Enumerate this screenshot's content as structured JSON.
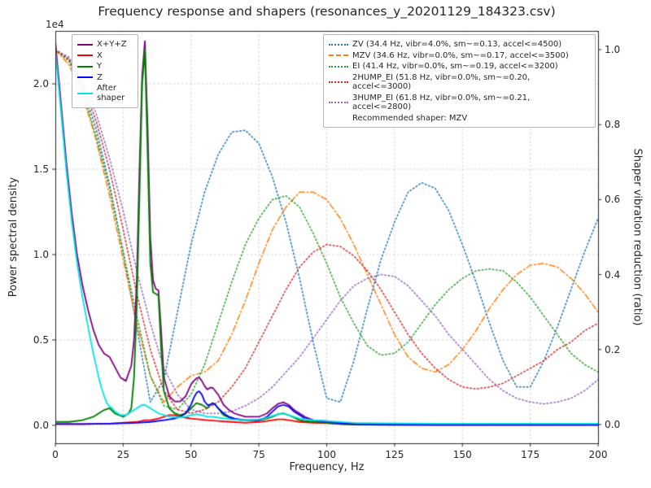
{
  "chart_data": {
    "type": "line",
    "title": "Frequency response and shapers (resonances_y_20201129_184323.csv)",
    "xlabel": "Frequency, Hz",
    "ylabel_left": "Power spectral density",
    "ylabel_right": "Shaper vibration reduction (ratio)",
    "y_left_offset_text": "1e4",
    "grid": true,
    "x_range": [
      0,
      200
    ],
    "y_left_range_1e4": [
      -0.105,
      2.31
    ],
    "y_right_range": [
      -0.05,
      1.05
    ],
    "x_ticks": [
      0,
      25,
      50,
      75,
      100,
      125,
      150,
      175,
      200
    ],
    "y_left_ticks": {
      "values": [
        0,
        0.5,
        1,
        1.5,
        2
      ],
      "labels": [
        "0.0",
        "0.5",
        "1.0",
        "1.5",
        "2.0"
      ]
    },
    "y_right_ticks": {
      "values": [
        0,
        0.2,
        0.4,
        0.6,
        0.8,
        1
      ],
      "labels": [
        "0.0",
        "0.2",
        "0.4",
        "0.6",
        "0.8",
        "1.0"
      ]
    },
    "psd_units": "1e4",
    "psd_series": [
      {
        "name": "X+Y+Z",
        "color": "#800080",
        "style": "solid",
        "width": 1.8,
        "x": [
          0,
          2,
          4,
          6,
          8,
          10,
          12,
          14,
          16,
          18,
          20,
          22,
          24,
          26,
          28,
          29,
          30,
          31,
          32,
          33,
          34,
          35,
          36,
          37,
          38,
          39,
          40,
          42,
          44,
          46,
          48,
          50,
          51,
          52,
          53,
          54,
          55,
          56,
          57,
          58,
          59,
          60,
          62,
          64,
          66,
          68,
          70,
          72,
          75,
          78,
          80,
          82,
          84,
          86,
          88,
          90,
          92,
          95,
          100,
          105,
          110,
          120,
          140,
          160,
          180,
          200
        ],
        "y": [
          2.25,
          1.9,
          1.55,
          1.25,
          1.0,
          0.82,
          0.68,
          0.56,
          0.47,
          0.42,
          0.4,
          0.34,
          0.28,
          0.26,
          0.35,
          0.5,
          0.85,
          1.5,
          2.05,
          2.25,
          1.75,
          1.1,
          0.85,
          0.8,
          0.79,
          0.55,
          0.28,
          0.17,
          0.14,
          0.14,
          0.17,
          0.24,
          0.26,
          0.275,
          0.28,
          0.26,
          0.23,
          0.21,
          0.22,
          0.22,
          0.2,
          0.18,
          0.12,
          0.09,
          0.07,
          0.06,
          0.05,
          0.05,
          0.05,
          0.07,
          0.1,
          0.125,
          0.135,
          0.12,
          0.09,
          0.07,
          0.05,
          0.03,
          0.025,
          0.015,
          0.01,
          0.005,
          0.004,
          0.004,
          0.004,
          0.004
        ]
      },
      {
        "name": "X",
        "color": "#ff0000",
        "style": "solid",
        "width": 1.8,
        "x": [
          0,
          10,
          20,
          30,
          33,
          35,
          38,
          40,
          42,
          44,
          46,
          48,
          50,
          53,
          56,
          60,
          65,
          70,
          75,
          78,
          80,
          82,
          84,
          86,
          88,
          90,
          95,
          100,
          105,
          110,
          120,
          140,
          160,
          180,
          200
        ],
        "y": [
          0.008,
          0.008,
          0.01,
          0.02,
          0.03,
          0.03,
          0.04,
          0.05,
          0.06,
          0.06,
          0.05,
          0.045,
          0.04,
          0.035,
          0.03,
          0.025,
          0.02,
          0.015,
          0.02,
          0.025,
          0.03,
          0.035,
          0.035,
          0.03,
          0.025,
          0.02,
          0.015,
          0.012,
          0.008,
          0.005,
          0.004,
          0.003,
          0.003,
          0.003,
          0.003
        ]
      },
      {
        "name": "Y",
        "color": "#008000",
        "style": "solid",
        "width": 1.9,
        "x": [
          0,
          5,
          10,
          14,
          16,
          18,
          20,
          22,
          25,
          27,
          28,
          29,
          30,
          31,
          32,
          33,
          34,
          35,
          36,
          37,
          38,
          39,
          40,
          42,
          44,
          46,
          48,
          50,
          52,
          54,
          56,
          57,
          58,
          59,
          60,
          62,
          65,
          68,
          70,
          72,
          75,
          78,
          80,
          82,
          84,
          86,
          88,
          90,
          92,
          95,
          100,
          105,
          110,
          120,
          140,
          160,
          180,
          200
        ],
        "y": [
          0.02,
          0.02,
          0.03,
          0.05,
          0.07,
          0.09,
          0.1,
          0.07,
          0.05,
          0.07,
          0.1,
          0.28,
          0.7,
          1.35,
          2.0,
          2.2,
          1.6,
          0.95,
          0.78,
          0.77,
          0.76,
          0.45,
          0.2,
          0.1,
          0.07,
          0.06,
          0.07,
          0.1,
          0.13,
          0.12,
          0.1,
          0.12,
          0.13,
          0.12,
          0.1,
          0.06,
          0.04,
          0.03,
          0.03,
          0.03,
          0.03,
          0.04,
          0.05,
          0.065,
          0.07,
          0.06,
          0.045,
          0.03,
          0.025,
          0.02,
          0.015,
          0.008,
          0.005,
          0.003,
          0.003,
          0.003,
          0.003,
          0.003
        ]
      },
      {
        "name": "Z",
        "color": "#0000ff",
        "style": "solid",
        "width": 1.8,
        "x": [
          0,
          10,
          20,
          30,
          35,
          40,
          44,
          46,
          48,
          50,
          51,
          52,
          53,
          54,
          55,
          56,
          57,
          58,
          59,
          60,
          62,
          64,
          66,
          68,
          70,
          72,
          75,
          78,
          80,
          82,
          84,
          86,
          88,
          90,
          92,
          95,
          100,
          105,
          110,
          120,
          140,
          160,
          180,
          200
        ],
        "y": [
          0.008,
          0.008,
          0.01,
          0.015,
          0.02,
          0.03,
          0.04,
          0.05,
          0.07,
          0.12,
          0.16,
          0.19,
          0.2,
          0.18,
          0.14,
          0.12,
          0.12,
          0.13,
          0.12,
          0.1,
          0.07,
          0.05,
          0.04,
          0.035,
          0.03,
          0.03,
          0.03,
          0.05,
          0.08,
          0.11,
          0.12,
          0.11,
          0.08,
          0.06,
          0.04,
          0.03,
          0.02,
          0.012,
          0.006,
          0.004,
          0.003,
          0.003,
          0.003,
          0.003
        ]
      },
      {
        "name": "After shaper",
        "color": "#00e5e5",
        "style": "solid",
        "width": 1.8,
        "x": [
          0,
          2,
          4,
          6,
          8,
          10,
          12,
          14,
          16,
          17,
          18,
          19,
          20,
          21,
          22,
          24,
          26,
          28,
          30,
          31,
          32,
          33,
          34,
          36,
          38,
          40,
          42,
          45,
          48,
          50,
          52,
          54,
          56,
          58,
          60,
          65,
          70,
          75,
          78,
          80,
          82,
          84,
          86,
          90,
          95,
          100,
          110,
          120,
          140,
          160,
          180,
          200
        ],
        "y": [
          2.2,
          1.85,
          1.5,
          1.2,
          0.95,
          0.75,
          0.58,
          0.42,
          0.28,
          0.22,
          0.17,
          0.13,
          0.11,
          0.1,
          0.08,
          0.06,
          0.06,
          0.08,
          0.1,
          0.11,
          0.12,
          0.12,
          0.11,
          0.09,
          0.07,
          0.06,
          0.05,
          0.045,
          0.05,
          0.06,
          0.065,
          0.06,
          0.05,
          0.05,
          0.045,
          0.035,
          0.03,
          0.035,
          0.045,
          0.055,
          0.065,
          0.07,
          0.06,
          0.04,
          0.03,
          0.025,
          0.015,
          0.012,
          0.01,
          0.01,
          0.01,
          0.01
        ]
      }
    ],
    "shaper_x": [
      0,
      5,
      10,
      15,
      20,
      25,
      30,
      35,
      40,
      45,
      50,
      55,
      60,
      65,
      70,
      75,
      80,
      85,
      90,
      95,
      100,
      105,
      110,
      115,
      120,
      125,
      130,
      135,
      140,
      145,
      150,
      155,
      160,
      165,
      170,
      175,
      180,
      185,
      190,
      195,
      200
    ],
    "shaper_series": [
      {
        "name": "ZV",
        "label": "ZV (34.4 Hz, vibr=4.0%, sm~=0.13, accel<=4500)",
        "color": "#1f77b4",
        "style": "dotted",
        "y": [
          1.0,
          0.97,
          0.9,
          0.79,
          0.64,
          0.46,
          0.26,
          0.06,
          0.12,
          0.3,
          0.48,
          0.62,
          0.72,
          0.78,
          0.785,
          0.75,
          0.66,
          0.54,
          0.39,
          0.22,
          0.07,
          0.06,
          0.17,
          0.31,
          0.44,
          0.54,
          0.62,
          0.645,
          0.63,
          0.57,
          0.48,
          0.38,
          0.27,
          0.17,
          0.1,
          0.1,
          0.17,
          0.26,
          0.36,
          0.46,
          0.55
        ]
      },
      {
        "name": "MZV",
        "label": "MZV (34.6 Hz, vibr=0.0%, sm~=0.17, accel<=3500)",
        "color": "#ff7f0e",
        "style": "dashdot",
        "y": [
          1.0,
          0.96,
          0.88,
          0.76,
          0.61,
          0.44,
          0.27,
          0.13,
          0.06,
          0.1,
          0.13,
          0.14,
          0.17,
          0.24,
          0.33,
          0.43,
          0.52,
          0.58,
          0.62,
          0.62,
          0.6,
          0.55,
          0.48,
          0.4,
          0.32,
          0.24,
          0.18,
          0.15,
          0.14,
          0.16,
          0.2,
          0.25,
          0.31,
          0.36,
          0.4,
          0.425,
          0.43,
          0.42,
          0.39,
          0.35,
          0.3
        ]
      },
      {
        "name": "EI",
        "label": "EI (41.4 Hz, vibr=0.0%, sm~=0.19, accel<=3200)",
        "color": "#2ca02c",
        "style": "dotted",
        "y": [
          1.0,
          0.97,
          0.89,
          0.77,
          0.63,
          0.46,
          0.29,
          0.13,
          0.05,
          0.04,
          0.08,
          0.16,
          0.27,
          0.38,
          0.48,
          0.55,
          0.6,
          0.61,
          0.58,
          0.51,
          0.43,
          0.34,
          0.27,
          0.21,
          0.185,
          0.19,
          0.22,
          0.27,
          0.32,
          0.36,
          0.39,
          0.41,
          0.415,
          0.41,
          0.38,
          0.34,
          0.29,
          0.24,
          0.19,
          0.16,
          0.14
        ]
      },
      {
        "name": "2HUMP_EI",
        "label": "2HUMP_EI (51.8 Hz, vibr=0.0%, sm~=0.20, accel<=3000)",
        "color": "#d62728",
        "style": "dotted",
        "y": [
          1.0,
          0.975,
          0.91,
          0.81,
          0.68,
          0.52,
          0.35,
          0.2,
          0.09,
          0.04,
          0.03,
          0.04,
          0.06,
          0.1,
          0.15,
          0.22,
          0.29,
          0.36,
          0.42,
          0.46,
          0.48,
          0.475,
          0.45,
          0.41,
          0.36,
          0.3,
          0.24,
          0.19,
          0.15,
          0.12,
          0.1,
          0.095,
          0.1,
          0.11,
          0.13,
          0.15,
          0.17,
          0.2,
          0.22,
          0.25,
          0.27
        ]
      },
      {
        "name": "3HUMP_EI",
        "label": "3HUMP_EI (61.8 Hz, vibr=0.0%, sm~=0.21, accel<=2800)",
        "color": "#9467bd",
        "style": "dotted",
        "y": [
          1.0,
          0.98,
          0.92,
          0.83,
          0.71,
          0.57,
          0.41,
          0.27,
          0.15,
          0.08,
          0.04,
          0.03,
          0.03,
          0.035,
          0.05,
          0.07,
          0.1,
          0.14,
          0.18,
          0.23,
          0.28,
          0.33,
          0.37,
          0.39,
          0.4,
          0.395,
          0.37,
          0.33,
          0.29,
          0.24,
          0.2,
          0.16,
          0.12,
          0.09,
          0.07,
          0.06,
          0.055,
          0.06,
          0.07,
          0.09,
          0.12
        ]
      }
    ],
    "legend_shapers_note": "Recommended shaper: MZV"
  }
}
